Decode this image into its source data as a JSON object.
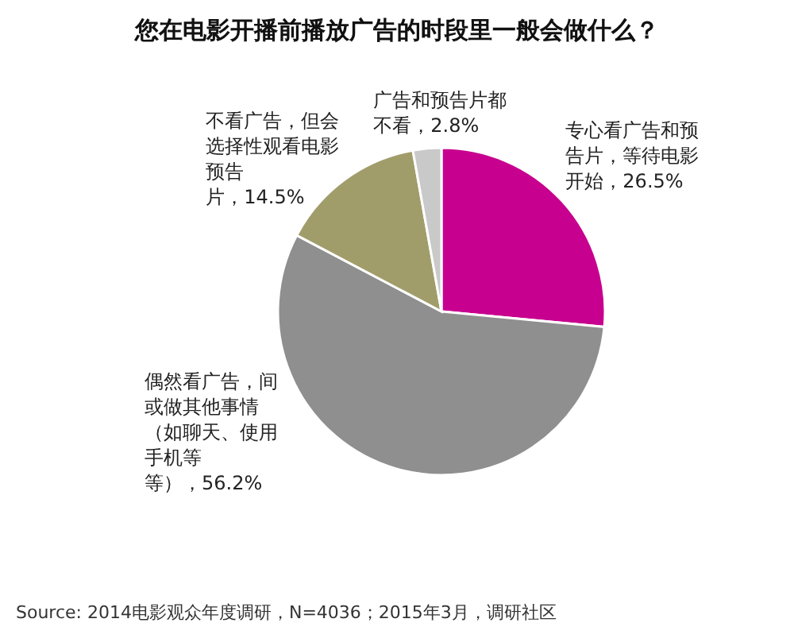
{
  "chart_data": {
    "type": "pie",
    "title": "您在电影开播前播放广告的时段里一般会做什么？",
    "categories": [
      "专心看广告和预告片，等待电影开始",
      "偶然看广告，间或做其他事情（如聊天、使用手机等等）",
      "不看广告，但会选择性观看电影预告片",
      "广告和预告片都不看"
    ],
    "values": [
      26.5,
      56.2,
      14.5,
      2.8
    ],
    "value_labels": [
      "，26.5%",
      "，56.2%",
      "，14.5%",
      "，2.8%"
    ],
    "colors": [
      "#c7008f",
      "#8f8f8f",
      "#a19d6b",
      "#c9c9c9"
    ],
    "annotations": [
      "Source: 2014电影观众年度调研，N=4036；2015年3月，调研社区"
    ]
  }
}
